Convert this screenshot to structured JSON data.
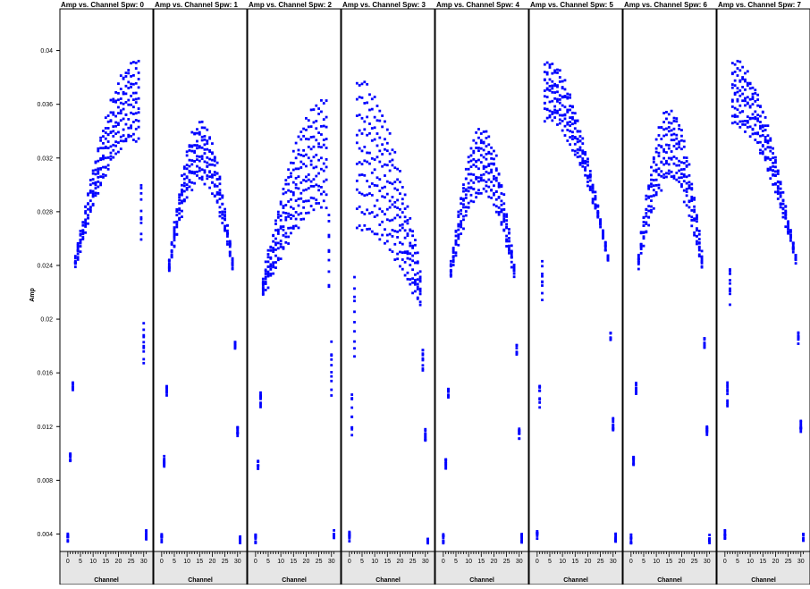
{
  "chart_data": {
    "type": "scatter",
    "ylabel": "Amp",
    "xlabel": "Channel",
    "marker_color": "#0000ff",
    "panel_background": "#ffffff",
    "bottom_strip_color": "#e6e6e6",
    "ylim": [
      0.0027,
      0.0431
    ],
    "xlim": [
      -1,
      31.5
    ],
    "y_ticks": [
      "0.004",
      "0.008",
      "0.012",
      "0.016",
      "0.02",
      "0.024",
      "0.028",
      "0.032",
      "0.036",
      "0.04"
    ],
    "x_ticks": [
      "0",
      "5",
      "10",
      "15",
      "20",
      "25",
      "30"
    ],
    "panels": [
      {
        "title": "Amp vs. Channel Spw: 0",
        "shape": "rise",
        "peak": 0.039,
        "base": 0.0335,
        "spread": 0.0055
      },
      {
        "title": "Amp vs. Channel Spw: 1",
        "shape": "dome",
        "peak": 0.0345,
        "base": 0.0305,
        "spread": 0.004
      },
      {
        "title": "Amp vs. Channel Spw: 2",
        "shape": "rise",
        "peak": 0.036,
        "base": 0.0285,
        "spread": 0.0075
      },
      {
        "title": "Amp vs. Channel Spw: 3",
        "shape": "fall",
        "peak": 0.0375,
        "base": 0.027,
        "spread": 0.0105
      },
      {
        "title": "Amp vs. Channel Spw: 4",
        "shape": "dome",
        "peak": 0.034,
        "base": 0.0295,
        "spread": 0.0045
      },
      {
        "title": "Amp vs. Channel Spw: 5",
        "shape": "fall",
        "peak": 0.039,
        "base": 0.035,
        "spread": 0.004
      },
      {
        "title": "Amp vs. Channel Spw: 6",
        "shape": "dome",
        "peak": 0.0355,
        "base": 0.0305,
        "spread": 0.005
      },
      {
        "title": "Amp vs. Channel Spw: 7",
        "shape": "fall",
        "peak": 0.039,
        "base": 0.0345,
        "spread": 0.0045
      }
    ]
  }
}
